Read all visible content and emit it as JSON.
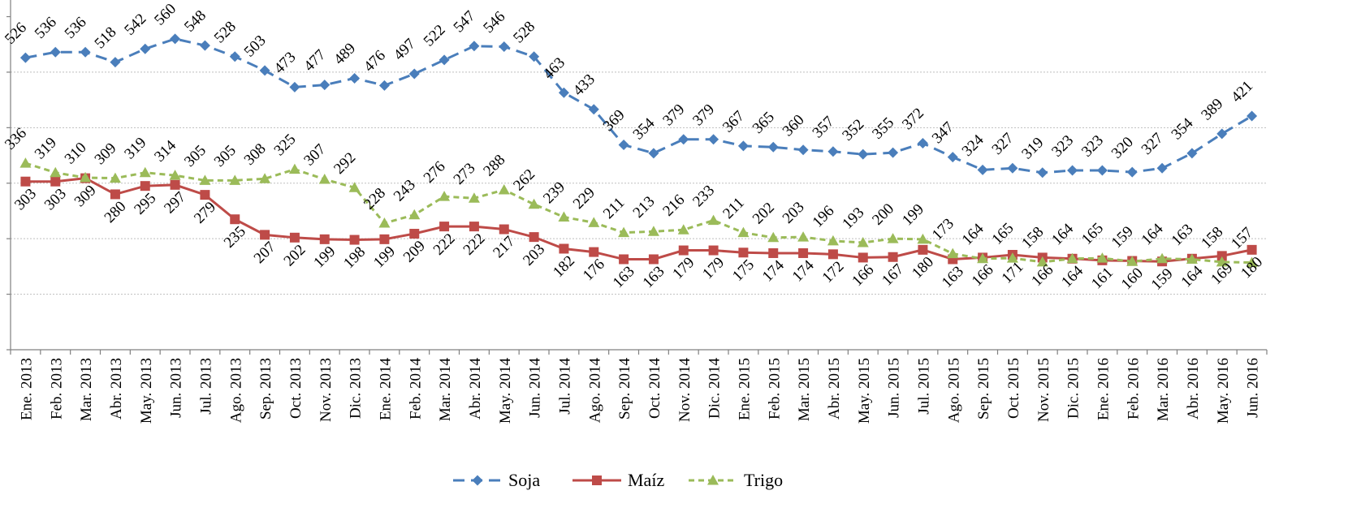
{
  "chart_data": {
    "type": "line",
    "title": "",
    "xlabel": "",
    "ylabel": "",
    "ylim": [
      0,
      630
    ],
    "y_gridlines": [
      100,
      200,
      300,
      400,
      500
    ],
    "grid": true,
    "legend_position": "bottom",
    "categories": [
      "Ene. 2013",
      "Feb. 2013",
      "Mar. 2013",
      "Abr. 2013",
      "May. 2013",
      "Jun. 2013",
      "Jul. 2013",
      "Ago. 2013",
      "Sep. 2013",
      "Oct. 2013",
      "Nov. 2013",
      "Dic. 2013",
      "Ene. 2014",
      "Feb. 2014",
      "Mar. 2014",
      "Abr. 2014",
      "May. 2014",
      "Jun. 2014",
      "Jul. 2014",
      "Ago. 2014",
      "Sep. 2014",
      "Oct. 2014",
      "Nov. 2014",
      "Dic. 2014",
      "Ene. 2015",
      "Feb. 2015",
      "Mar. 2015",
      "Abr. 2015",
      "May. 2015",
      "Jun. 2015",
      "Jul. 2015",
      "Ago. 2015",
      "Sep. 2015",
      "Oct. 2015",
      "Nov. 2015",
      "Dic. 2015",
      "Ene. 2016",
      "Feb. 2016",
      "Mar. 2016",
      "Abr. 2016",
      "May. 2016",
      "Jun. 2016"
    ],
    "series": [
      {
        "name": "Soja",
        "color": "#4a7ebb",
        "marker": "diamond",
        "line_style": "dashed",
        "values": [
          526,
          536,
          536,
          518,
          542,
          560,
          548,
          528,
          503,
          473,
          477,
          489,
          476,
          497,
          522,
          547,
          546,
          528,
          463,
          433,
          369,
          354,
          379,
          379,
          367,
          365,
          360,
          357,
          352,
          355,
          372,
          347,
          324,
          327,
          319,
          323,
          323,
          320,
          327,
          354,
          389,
          421
        ]
      },
      {
        "name": "Maíz",
        "color": "#be4b48",
        "marker": "square",
        "line_style": "solid",
        "values": [
          303,
          303,
          309,
          280,
          295,
          297,
          279,
          235,
          207,
          202,
          199,
          198,
          199,
          209,
          222,
          222,
          217,
          203,
          182,
          176,
          163,
          163,
          179,
          179,
          175,
          174,
          174,
          172,
          166,
          167,
          180,
          163,
          166,
          171,
          166,
          164,
          161,
          160,
          159,
          164,
          169,
          180
        ]
      },
      {
        "name": "Trigo",
        "color": "#9bbb59",
        "marker": "triangle",
        "line_style": "short-dashed",
        "values": [
          336,
          319,
          310,
          309,
          319,
          314,
          305,
          305,
          308,
          325,
          307,
          292,
          228,
          243,
          276,
          273,
          288,
          262,
          239,
          229,
          211,
          213,
          216,
          233,
          211,
          202,
          203,
          196,
          193,
          200,
          199,
          173,
          164,
          165,
          158,
          164,
          165,
          159,
          164,
          163,
          158,
          157
        ]
      }
    ]
  }
}
